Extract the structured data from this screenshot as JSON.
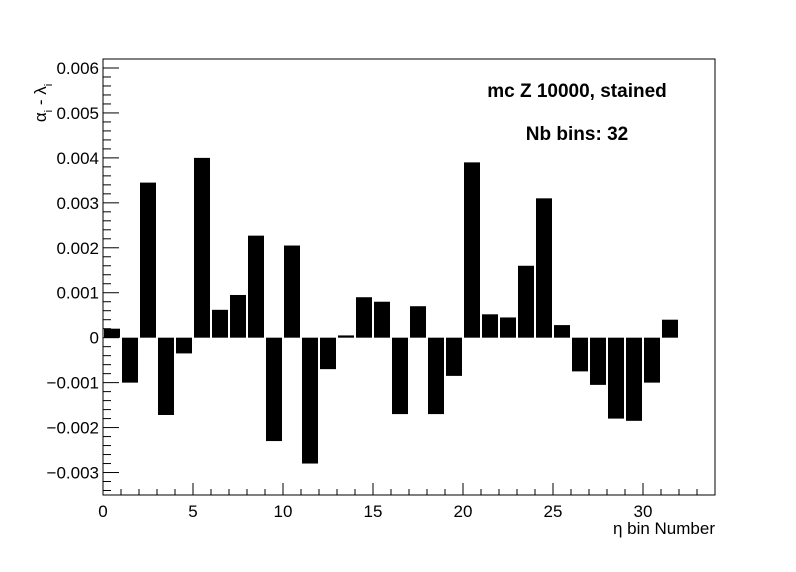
{
  "chart_data": {
    "type": "bar",
    "title": "",
    "xlabel": "η bin Number",
    "ylabel_main": "α",
    "ylabel_sub": "i",
    "ylabel_mid": " - λ",
    "ylabel_sub2": "i",
    "xlim": [
      0,
      34
    ],
    "ylim": [
      -0.0035,
      0.0062
    ],
    "x_ticks": [
      0,
      5,
      10,
      15,
      20,
      25,
      30
    ],
    "x_tick_labels": [
      "0",
      "5",
      "10",
      "15",
      "20",
      "25",
      "30"
    ],
    "y_ticks": [
      -0.003,
      -0.002,
      -0.001,
      0,
      0.001,
      0.002,
      0.003,
      0.004,
      0.005,
      0.006
    ],
    "y_tick_labels": [
      "−0.003",
      "−0.002",
      "−0.001",
      "0",
      "0.001",
      "0.002",
      "0.003",
      "0.004",
      "0.005",
      "0.006"
    ],
    "annotations": [
      "mc Z 10000, stained",
      "Nb bins: 32"
    ],
    "grid": false,
    "bar_color": "#000000",
    "bin_starts": [
      0,
      1,
      2,
      3,
      4,
      5,
      6,
      7,
      8,
      9,
      10,
      11,
      12,
      13,
      14,
      15,
      16,
      17,
      18,
      19,
      20,
      21,
      22,
      23,
      24,
      25,
      26,
      27,
      28,
      29,
      30,
      31
    ],
    "values": [
      0.0002,
      -0.001,
      0.00345,
      -0.00172,
      -0.00035,
      0.004,
      0.00062,
      0.00095,
      0.00227,
      -0.0023,
      0.00205,
      -0.0028,
      -0.0007,
      5e-05,
      0.0009,
      0.0008,
      -0.0017,
      0.0007,
      -0.0017,
      -0.00085,
      0.0039,
      0.00052,
      0.00045,
      0.0016,
      0.0031,
      0.00028,
      -0.00075,
      -0.00105,
      -0.0018,
      -0.00185,
      -0.001,
      0.0004
    ]
  }
}
